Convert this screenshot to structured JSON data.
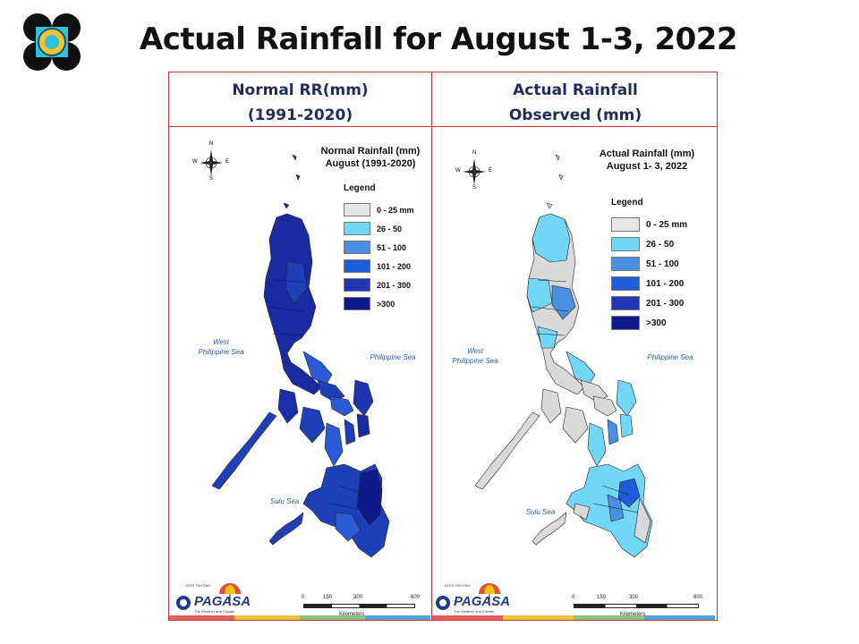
{
  "title": "Actual Rainfall for August 1-3, 2022",
  "columns": [
    {
      "header": [
        "Normal RR(mm)",
        "(1991-2020)"
      ],
      "map_title": [
        "Normal Rainfall (mm)",
        "August (1991-2020)"
      ],
      "legend_title": "Legend",
      "legend": [
        {
          "label": "0 - 25 mm",
          "color": "#e6e6e6"
        },
        {
          "label": "26 - 50",
          "color": "#72d7f7"
        },
        {
          "label": "51 - 100",
          "color": "#4a90e2"
        },
        {
          "label": "101 - 200",
          "color": "#1d5ed8"
        },
        {
          "label": "201 - 300",
          "color": "#2135b5"
        },
        {
          "label": ">300",
          "color": "#0f1a8c"
        }
      ]
    },
    {
      "header": [
        "Actual Rainfall",
        "Observed (mm)"
      ],
      "map_title": [
        "Actual Rainfall (mm)",
        "August 1- 3, 2022"
      ],
      "legend_title": "Legend",
      "legend": [
        {
          "label": "0 - 25 mm",
          "color": "#e6e6e6"
        },
        {
          "label": "26 - 50",
          "color": "#72d7f7"
        },
        {
          "label": "51 - 100",
          "color": "#4a90e2"
        },
        {
          "label": "101 - 200",
          "color": "#1d5ed8"
        },
        {
          "label": "201 - 300",
          "color": "#2135b5"
        },
        {
          "label": ">300",
          "color": "#0f1a8c"
        }
      ]
    }
  ],
  "seas": {
    "west": [
      "West",
      "Philippine Sea"
    ],
    "east": "Philippine Sea",
    "sulu": "Sulu Sea"
  },
  "compass": {
    "n": "N",
    "s": "S",
    "e": "E",
    "w": "W"
  },
  "scale": {
    "ticks": [
      "0",
      "150",
      "300",
      "600"
    ],
    "unit": "Kilometers"
  },
  "branding": {
    "name": "PAGASA",
    "tag": "DOST PAYONG",
    "tagline": "The Weather and Climate Authority"
  },
  "colors": {
    "frame": "#c0392b",
    "header_text": "#1f2d5c"
  }
}
